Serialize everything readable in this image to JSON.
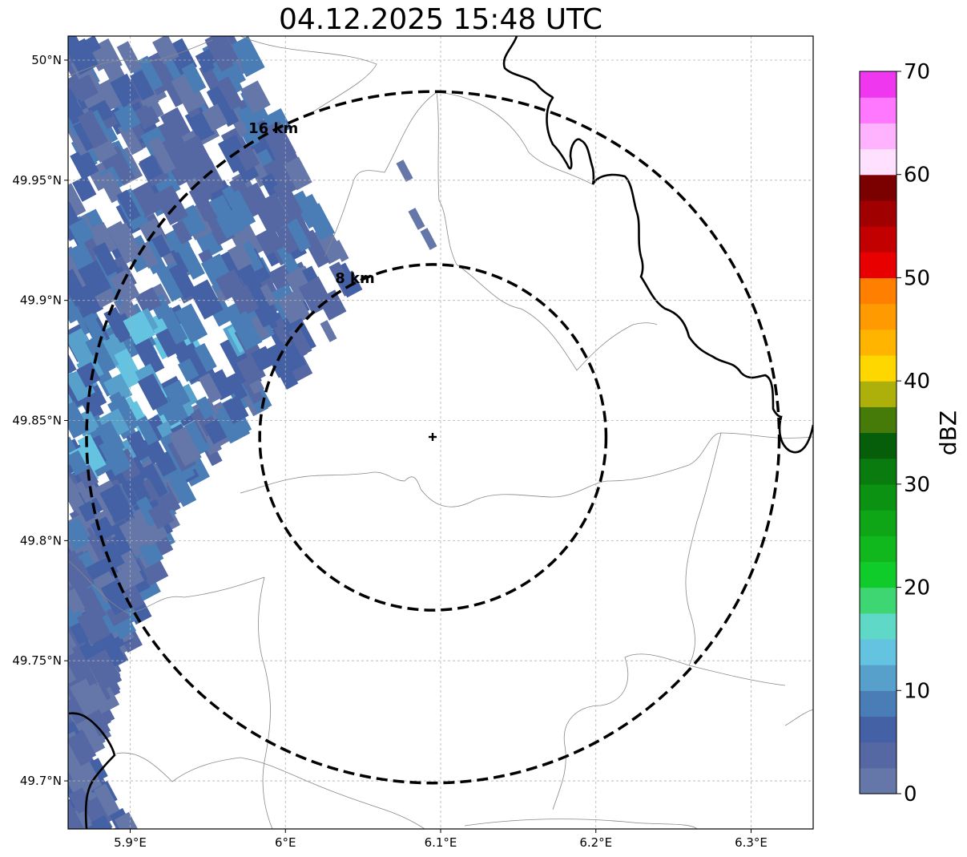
{
  "title": "04.12.2025 15:48 UTC",
  "map": {
    "lon_ticks": [
      {
        "value": 5.9,
        "label": "5.9°E"
      },
      {
        "value": 6.0,
        "label": "6°E"
      },
      {
        "value": 6.1,
        "label": "6.1°E"
      },
      {
        "value": 6.2,
        "label": "6.2°E"
      },
      {
        "value": 6.3,
        "label": "6.3°E"
      }
    ],
    "lat_ticks": [
      {
        "value": 50.0,
        "label": "50°N"
      },
      {
        "value": 49.95,
        "label": "49.95°N"
      },
      {
        "value": 49.9,
        "label": "49.9°N"
      },
      {
        "value": 49.85,
        "label": "49.85°N"
      },
      {
        "value": 49.8,
        "label": "49.8°N"
      },
      {
        "value": 49.75,
        "label": "49.75°N"
      },
      {
        "value": 49.7,
        "label": "49.7°N"
      }
    ],
    "extent": {
      "lon_min": 5.86,
      "lon_max": 6.34,
      "lat_min": 49.68,
      "lat_max": 50.01
    },
    "center": {
      "lon": 6.095,
      "lat": 49.843
    },
    "rings": [
      {
        "label": "8 km",
        "radius_km": 8
      },
      {
        "label": "16 km",
        "radius_km": 16
      }
    ]
  },
  "colorbar": {
    "label": "dBZ",
    "ticks": [
      {
        "value": 0,
        "label": "0"
      },
      {
        "value": 10,
        "label": "10"
      },
      {
        "value": 20,
        "label": "20"
      },
      {
        "value": 30,
        "label": "30"
      },
      {
        "value": 40,
        "label": "40"
      },
      {
        "value": 50,
        "label": "50"
      },
      {
        "value": 60,
        "label": "60"
      },
      {
        "value": 70,
        "label": "70"
      }
    ],
    "colors": [
      "#6477a8",
      "#5568a3",
      "#4561a5",
      "#4a7db5",
      "#58a0cc",
      "#64c3e0",
      "#5fd8c7",
      "#3dd672",
      "#10cc2a",
      "#10b71d",
      "#0ea517",
      "#0b9212",
      "#0a7b0f",
      "#065e0b",
      "#467a09",
      "#adb00a",
      "#ffd700",
      "#ffb400",
      "#ff9b00",
      "#ff7f00",
      "#e80000",
      "#c30000",
      "#a10000",
      "#7b0000",
      "#ffe0ff",
      "#ffb3ff",
      "#ff78ff",
      "#f037f0"
    ]
  }
}
